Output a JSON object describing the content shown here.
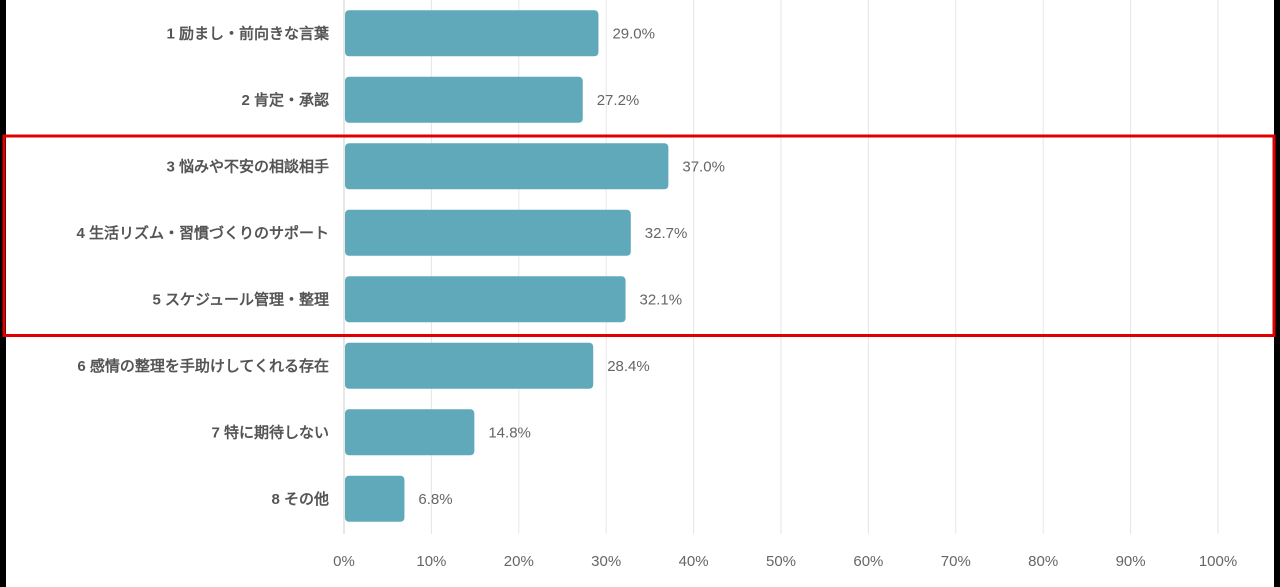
{
  "chart_data": {
    "type": "bar",
    "orientation": "horizontal",
    "categories": [
      "1 励まし・前向きな言葉",
      "2 肯定・承認",
      "3 悩みや不安の相談相手",
      "4 生活リズム・習慣づくりのサポート",
      "5 スケジュール管理・整理",
      "6 感情の整理を手助けしてくれる存在",
      "7 特に期待しない",
      "8 その他"
    ],
    "values": [
      29.0,
      27.2,
      37.0,
      32.7,
      32.1,
      28.4,
      14.8,
      6.8
    ],
    "value_labels": [
      "29.0%",
      "27.2%",
      "37.0%",
      "32.7%",
      "32.1%",
      "28.4%",
      "14.8%",
      "6.8%"
    ],
    "x_ticks": [
      "0%",
      "10%",
      "20%",
      "30%",
      "40%",
      "50%",
      "60%",
      "70%",
      "80%",
      "90%",
      "100%"
    ],
    "xlim": [
      0,
      100
    ],
    "grid": "vertical",
    "highlight": {
      "from_index": 2,
      "to_index": 4,
      "color": "#e00000"
    },
    "colors": {
      "bar": "#5fa9bb",
      "grid": "#e6e6e6"
    }
  }
}
